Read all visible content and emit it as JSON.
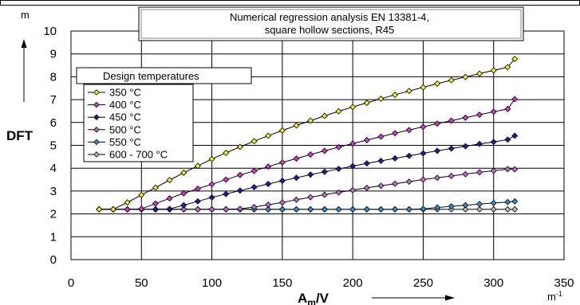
{
  "chart_data": {
    "type": "line",
    "title_lines": [
      "Numerical regression analysis EN 13381-4,",
      "square hollow sections, R45"
    ],
    "ylabel": "DFT",
    "y_unit": "m",
    "x_unit_base": "m",
    "x_unit_exp": "-1",
    "xlabel_main": "A",
    "xlabel_sub": "m",
    "xlabel_tail": "/V",
    "xlim": [
      0,
      350
    ],
    "ylim": [
      0,
      10
    ],
    "x_ticks": [
      "0",
      "50",
      "100",
      "150",
      "200",
      "250",
      "300",
      "350"
    ],
    "y_ticks": [
      "0",
      "1",
      "2",
      "3",
      "4",
      "5",
      "6",
      "7",
      "8",
      "9",
      "10"
    ],
    "grid": true,
    "legend_title": "Design temperatures",
    "legend_position": "upper-left",
    "series": [
      {
        "name": "350 °C",
        "color": "#f2f21a",
        "x": [
          20,
          30,
          40,
          50,
          60,
          70,
          80,
          90,
          100,
          110,
          120,
          130,
          140,
          150,
          160,
          170,
          180,
          190,
          200,
          210,
          220,
          230,
          240,
          250,
          260,
          270,
          280,
          290,
          300,
          310,
          315
        ],
        "y": [
          2.2,
          2.2,
          2.5,
          2.83,
          3.15,
          3.48,
          3.8,
          4.1,
          4.4,
          4.67,
          4.93,
          5.18,
          5.42,
          5.65,
          5.87,
          6.08,
          6.29,
          6.49,
          6.68,
          6.86,
          7.04,
          7.21,
          7.38,
          7.54,
          7.7,
          7.85,
          7.99,
          8.14,
          8.28,
          8.42,
          8.78
        ]
      },
      {
        "name": "400 °C",
        "color": "#e033d6",
        "x": [
          20,
          30,
          40,
          50,
          60,
          70,
          80,
          90,
          100,
          110,
          120,
          130,
          140,
          150,
          160,
          170,
          180,
          190,
          200,
          210,
          220,
          230,
          240,
          250,
          260,
          270,
          280,
          290,
          300,
          310,
          315
        ],
        "y": [
          2.2,
          2.2,
          2.2,
          2.22,
          2.45,
          2.68,
          2.9,
          3.1,
          3.3,
          3.5,
          3.7,
          3.88,
          4.07,
          4.25,
          4.42,
          4.6,
          4.76,
          4.92,
          5.08,
          5.23,
          5.38,
          5.53,
          5.67,
          5.81,
          5.95,
          6.08,
          6.21,
          6.34,
          6.47,
          6.59,
          7.02
        ]
      },
      {
        "name": "450 °C",
        "color": "#1c1cb4",
        "x": [
          20,
          30,
          40,
          50,
          60,
          70,
          80,
          90,
          100,
          110,
          120,
          130,
          140,
          150,
          160,
          170,
          180,
          190,
          200,
          210,
          220,
          230,
          240,
          250,
          260,
          270,
          280,
          290,
          300,
          310,
          315
        ],
        "y": [
          2.2,
          2.2,
          2.2,
          2.2,
          2.2,
          2.22,
          2.38,
          2.55,
          2.72,
          2.87,
          3.02,
          3.17,
          3.31,
          3.45,
          3.58,
          3.72,
          3.84,
          3.97,
          4.09,
          4.21,
          4.32,
          4.43,
          4.54,
          4.65,
          4.76,
          4.86,
          4.96,
          5.06,
          5.15,
          5.25,
          5.42
        ]
      },
      {
        "name": "500 °C",
        "color": "#cc66dd",
        "x": [
          20,
          30,
          40,
          50,
          60,
          70,
          80,
          90,
          100,
          110,
          120,
          130,
          140,
          150,
          160,
          170,
          180,
          190,
          200,
          210,
          220,
          230,
          240,
          250,
          260,
          270,
          280,
          290,
          300,
          310,
          315
        ],
        "y": [
          2.2,
          2.2,
          2.2,
          2.2,
          2.2,
          2.2,
          2.2,
          2.2,
          2.2,
          2.2,
          2.22,
          2.3,
          2.4,
          2.5,
          2.62,
          2.73,
          2.84,
          2.94,
          3.04,
          3.14,
          3.23,
          3.32,
          3.41,
          3.5,
          3.58,
          3.66,
          3.74,
          3.82,
          3.89,
          3.96,
          3.95
        ]
      },
      {
        "name": "550 °C",
        "color": "#2e8fe0",
        "x": [
          20,
          30,
          40,
          50,
          60,
          70,
          80,
          90,
          100,
          110,
          120,
          130,
          140,
          150,
          160,
          170,
          180,
          190,
          200,
          210,
          220,
          230,
          240,
          250,
          260,
          270,
          280,
          290,
          300,
          310,
          315
        ],
        "y": [
          2.2,
          2.2,
          2.2,
          2.2,
          2.2,
          2.2,
          2.2,
          2.2,
          2.2,
          2.2,
          2.2,
          2.2,
          2.2,
          2.2,
          2.2,
          2.2,
          2.2,
          2.2,
          2.2,
          2.2,
          2.2,
          2.2,
          2.2,
          2.22,
          2.28,
          2.33,
          2.38,
          2.43,
          2.48,
          2.52,
          2.55
        ]
      },
      {
        "name": "600 - 700 °C",
        "color": "#b8b8b8",
        "x": [
          20,
          30,
          40,
          50,
          60,
          70,
          80,
          90,
          100,
          110,
          120,
          130,
          140,
          150,
          160,
          170,
          180,
          190,
          200,
          210,
          220,
          230,
          240,
          250,
          260,
          270,
          280,
          290,
          300,
          310,
          315
        ],
        "y": [
          2.2,
          2.2,
          2.2,
          2.2,
          2.2,
          2.2,
          2.2,
          2.2,
          2.2,
          2.2,
          2.2,
          2.2,
          2.2,
          2.2,
          2.2,
          2.2,
          2.2,
          2.2,
          2.2,
          2.2,
          2.2,
          2.2,
          2.2,
          2.2,
          2.2,
          2.2,
          2.2,
          2.2,
          2.2,
          2.2,
          2.2
        ]
      }
    ]
  }
}
